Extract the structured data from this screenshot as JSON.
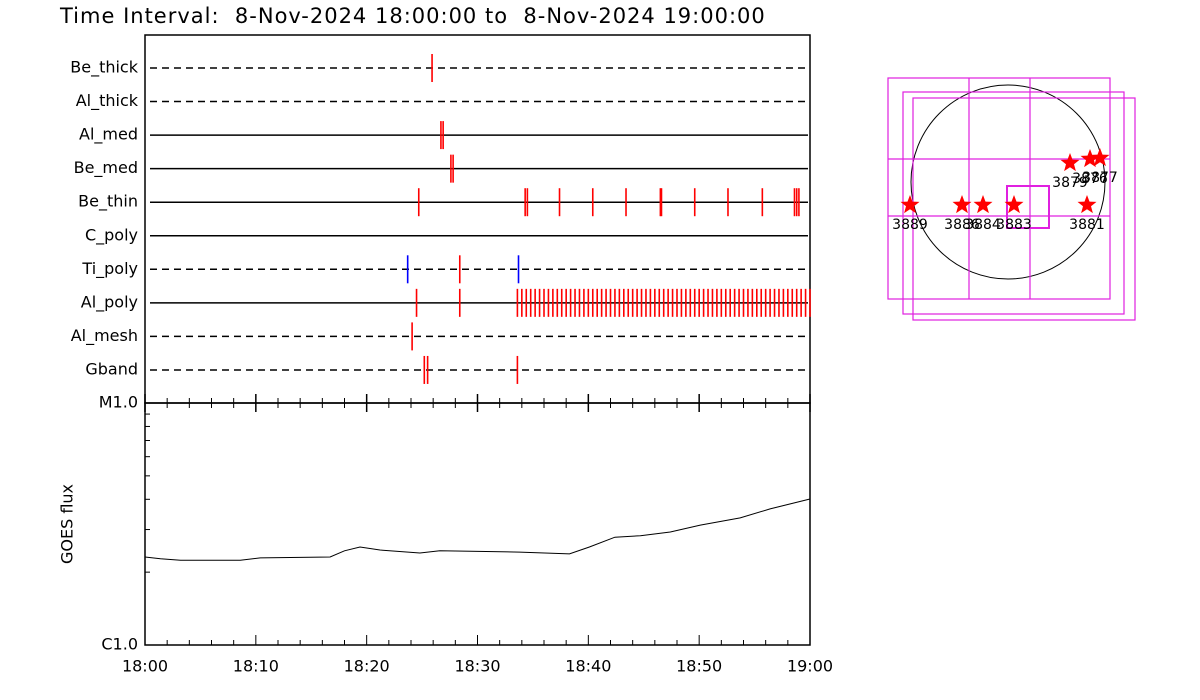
{
  "chart_data": [
    {
      "type": "timeline",
      "title": "Time Interval:  8-Nov-2024 18:00:00 to  8-Nov-2024 19:00:00",
      "xlim": [
        0,
        60
      ],
      "color": "#ff0000",
      "rows": [
        {
          "name": "Be_thick",
          "style": "dashed",
          "events": [
            25.9
          ]
        },
        {
          "name": "Al_thick",
          "style": "dashed",
          "events": []
        },
        {
          "name": "Al_med",
          "style": "solid",
          "events": [
            26.7,
            26.9
          ]
        },
        {
          "name": "Be_med",
          "style": "solid",
          "events": [
            27.6,
            27.8
          ]
        },
        {
          "name": "Be_thin",
          "style": "solid",
          "events": [
            24.7,
            34.3,
            34.5,
            37.4,
            40.4,
            43.4,
            46.5,
            46.6,
            49.6,
            52.6,
            55.7,
            58.6,
            58.8,
            59.0
          ]
        },
        {
          "name": "C_poly",
          "style": "solid",
          "events": []
        },
        {
          "name": "Ti_poly",
          "style": "dashed",
          "events": [
            23.7,
            28.4,
            33.7
          ],
          "event_colors": [
            "#0000ff",
            "#ff0000",
            "#0000ff"
          ]
        },
        {
          "name": "Al_poly",
          "style": "solid",
          "events": [
            24.5,
            28.4,
            33.6,
            34.0,
            34.4,
            34.8,
            35.2,
            35.6,
            36.0,
            36.4,
            36.8,
            37.2,
            37.6,
            38.0,
            38.4,
            38.8,
            39.2,
            39.6,
            40.0,
            40.4,
            40.8,
            41.2,
            41.6,
            42.0,
            42.4,
            42.8,
            43.2,
            43.6,
            44.0,
            44.4,
            44.8,
            45.2,
            45.6,
            46.0,
            46.4,
            46.8,
            47.2,
            47.6,
            48.0,
            48.4,
            48.8,
            49.2,
            49.6,
            50.0,
            50.4,
            50.8,
            51.2,
            51.6,
            52.0,
            52.4,
            52.8,
            53.2,
            53.6,
            54.0,
            54.4,
            54.8,
            55.2,
            55.6,
            56.0,
            56.4,
            56.8,
            57.2,
            57.6,
            58.0,
            58.4,
            58.8,
            59.2,
            59.6,
            60.0
          ]
        },
        {
          "name": "Al_mesh",
          "style": "dashed",
          "events": [
            24.1
          ]
        },
        {
          "name": "Gband",
          "style": "dashed",
          "events": [
            25.2,
            25.5,
            33.6
          ]
        }
      ]
    },
    {
      "type": "line",
      "ylabel": "GOES flux",
      "color": "#000000",
      "log_y": true,
      "x": [
        0,
        1.4,
        3.2,
        8.6,
        10.4,
        16.7,
        18,
        19.4,
        21.2,
        24.8,
        26.6,
        33.8,
        38.3,
        40.1,
        42.4,
        44.7,
        47.4,
        50.1,
        53.7,
        56.4,
        60
      ],
      "values": [
        2.31e-06,
        2.27e-06,
        2.24e-06,
        2.24e-06,
        2.29e-06,
        2.31e-06,
        2.45e-06,
        2.54e-06,
        2.47e-06,
        2.4e-06,
        2.45e-06,
        2.42e-06,
        2.38e-06,
        2.54e-06,
        2.79e-06,
        2.83e-06,
        2.93e-06,
        3.13e-06,
        3.35e-06,
        3.65e-06,
        4.01e-06
      ],
      "xlim": [
        0,
        60
      ],
      "xticks": [
        {
          "value": 0,
          "label": "18:00"
        },
        {
          "value": 10,
          "label": "18:10"
        },
        {
          "value": 20,
          "label": "18:20"
        },
        {
          "value": 30,
          "label": "18:30"
        },
        {
          "value": 40,
          "label": "18:40"
        },
        {
          "value": 50,
          "label": "18:50"
        },
        {
          "value": 60,
          "label": "19:00"
        }
      ],
      "minor_xticks": [
        2,
        4,
        6,
        8,
        12,
        14,
        16,
        18,
        22,
        24,
        26,
        28,
        32,
        34,
        36,
        38,
        42,
        44,
        46,
        48,
        52,
        54,
        56,
        58
      ],
      "ylim": [
        1e-06,
        1e-05
      ],
      "yticks": [
        {
          "value": 1e-06,
          "label": "C1.0"
        },
        {
          "value": 1e-05,
          "label": "M1.0"
        }
      ],
      "minor_yticks": [
        2e-06,
        3e-06,
        4e-06,
        5e-06,
        6e-06,
        7e-06,
        8e-06,
        9e-06
      ]
    },
    {
      "type": "map",
      "color": "#ff0000",
      "labels": [
        "3889",
        "3886",
        "3884",
        "3883",
        "3881",
        "3879",
        "3876",
        "3877"
      ],
      "x": [
        -980,
        -460,
        -250,
        60,
        790,
        620,
        820,
        920
      ],
      "y": [
        -230,
        -230,
        -230,
        -230,
        -230,
        190,
        230,
        240
      ]
    }
  ]
}
